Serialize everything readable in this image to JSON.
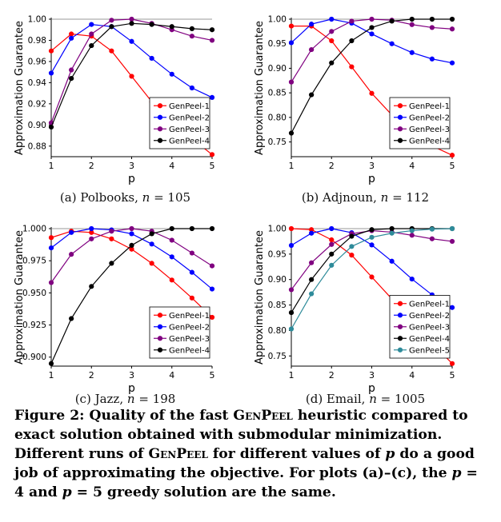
{
  "chart_data": [
    {
      "type": "line",
      "caption": {
        "label": "(a) Polbooks, ",
        "n_part": "n",
        "eq": " = 105"
      },
      "xlabel": "p",
      "ylabel": "Approximation Guarantee",
      "xlim": [
        1,
        5
      ],
      "ylim": [
        0.87,
        1.0
      ],
      "xticks": [
        "1",
        "2",
        "3",
        "4",
        "5"
      ],
      "yticks": [
        0.88,
        0.9,
        0.92,
        0.94,
        0.96,
        0.98,
        1.0
      ],
      "ytick_labels": [
        "0.88",
        "0.90",
        "0.92",
        "0.94",
        "0.96",
        "0.98",
        "1.00"
      ],
      "legend_position": "right",
      "reference_line": 1.0,
      "x": [
        1,
        1.5,
        2,
        2.5,
        3,
        3.5,
        4,
        4.5,
        5
      ],
      "series": [
        {
          "name": "GenPeel-1",
          "color": "#ff0000",
          "values": [
            0.97,
            0.986,
            0.984,
            0.97,
            0.946,
            0.922,
            0.905,
            0.887,
            0.872
          ]
        },
        {
          "name": "GenPeel-2",
          "color": "#0000ff",
          "values": [
            0.949,
            0.982,
            0.995,
            0.993,
            0.979,
            0.963,
            0.948,
            0.935,
            0.926
          ]
        },
        {
          "name": "GenPeel-3",
          "color": "#800080",
          "values": [
            0.902,
            0.952,
            0.986,
            0.999,
            1.0,
            0.996,
            0.99,
            0.984,
            0.98
          ]
        },
        {
          "name": "GenPeel-4",
          "color": "#000000",
          "values": [
            0.898,
            0.944,
            0.975,
            0.993,
            0.996,
            0.995,
            0.993,
            0.991,
            0.99
          ]
        }
      ]
    },
    {
      "type": "line",
      "caption": {
        "label": "(b) Adjnoun, ",
        "n_part": "n",
        "eq": " = 112"
      },
      "xlabel": "p",
      "ylabel": "Approximation Guarantee",
      "xlim": [
        1,
        5
      ],
      "ylim": [
        0.72,
        1.0
      ],
      "xticks": [
        "1",
        "2",
        "3",
        "4",
        "5"
      ],
      "yticks": [
        0.75,
        0.8,
        0.85,
        0.9,
        0.95,
        1.0
      ],
      "ytick_labels": [
        "0.75",
        "0.80",
        "0.85",
        "0.90",
        "0.95",
        "1.00"
      ],
      "legend_position": "right",
      "reference_line": 1.0,
      "x": [
        1,
        1.5,
        2,
        2.5,
        3,
        3.5,
        4,
        4.5,
        5
      ],
      "series": [
        {
          "name": "GenPeel-1",
          "color": "#ff0000",
          "values": [
            0.986,
            0.986,
            0.956,
            0.903,
            0.849,
            0.805,
            0.772,
            0.742,
            0.723
          ]
        },
        {
          "name": "GenPeel-2",
          "color": "#0000ff",
          "values": [
            0.952,
            0.99,
            1.0,
            0.992,
            0.97,
            0.95,
            0.932,
            0.919,
            0.911
          ]
        },
        {
          "name": "GenPeel-3",
          "color": "#800080",
          "values": [
            0.872,
            0.938,
            0.975,
            0.996,
            1.0,
            0.998,
            0.989,
            0.983,
            0.98
          ]
        },
        {
          "name": "GenPeel-4",
          "color": "#000000",
          "values": [
            0.768,
            0.846,
            0.911,
            0.956,
            0.983,
            0.996,
            1.0,
            1.0,
            1.0
          ]
        }
      ]
    },
    {
      "type": "line",
      "caption": {
        "label": "(c) Jazz, ",
        "n_part": "n",
        "eq": " = 198"
      },
      "xlabel": "p",
      "ylabel": "Approximation Guarantee",
      "xlim": [
        1,
        5
      ],
      "ylim": [
        0.893,
        1.0
      ],
      "xticks": [
        "1",
        "2",
        "3",
        "4",
        "5"
      ],
      "yticks": [
        0.9,
        0.925,
        0.95,
        0.975,
        1.0
      ],
      "ytick_labels": [
        "0.900",
        "0.925",
        "0.950",
        "0.975",
        "1.000"
      ],
      "legend_position": "right",
      "reference_line": 1.0,
      "x": [
        1,
        1.5,
        2,
        2.5,
        3,
        3.5,
        4,
        4.5,
        5
      ],
      "series": [
        {
          "name": "GenPeel-1",
          "color": "#ff0000",
          "values": [
            0.993,
            0.998,
            0.997,
            0.992,
            0.984,
            0.973,
            0.96,
            0.946,
            0.931
          ]
        },
        {
          "name": "GenPeel-2",
          "color": "#0000ff",
          "values": [
            0.985,
            0.997,
            1.0,
            0.999,
            0.996,
            0.988,
            0.978,
            0.966,
            0.953
          ]
        },
        {
          "name": "GenPeel-3",
          "color": "#800080",
          "values": [
            0.958,
            0.98,
            0.992,
            0.998,
            1.0,
            0.998,
            0.991,
            0.981,
            0.971
          ]
        },
        {
          "name": "GenPeel-4",
          "color": "#000000",
          "values": [
            0.895,
            0.93,
            0.955,
            0.973,
            0.987,
            0.996,
            1.0,
            1.0,
            1.0
          ]
        }
      ]
    },
    {
      "type": "line",
      "caption": {
        "label": "(d) Email, ",
        "n_part": "n",
        "eq": " = 1005"
      },
      "xlabel": "p",
      "ylabel": "Approximation Guarantee",
      "xlim": [
        1,
        5
      ],
      "ylim": [
        0.73,
        1.0
      ],
      "xticks": [
        "1",
        "2",
        "3",
        "4",
        "5"
      ],
      "yticks": [
        0.75,
        0.8,
        0.85,
        0.9,
        0.95,
        1.0
      ],
      "ytick_labels": [
        "0.75",
        "0.80",
        "0.85",
        "0.90",
        "0.95",
        "1.00"
      ],
      "legend_position": "right",
      "reference_line": 1.0,
      "x": [
        1,
        1.5,
        2,
        2.5,
        3,
        3.5,
        4,
        4.5,
        5
      ],
      "series": [
        {
          "name": "GenPeel-1",
          "color": "#ff0000",
          "values": [
            1.0,
            0.998,
            0.978,
            0.948,
            0.905,
            0.862,
            0.818,
            0.775,
            0.735
          ]
        },
        {
          "name": "GenPeel-2",
          "color": "#0000ff",
          "values": [
            0.967,
            0.991,
            1.0,
            0.992,
            0.968,
            0.936,
            0.901,
            0.87,
            0.845
          ]
        },
        {
          "name": "GenPeel-3",
          "color": "#800080",
          "values": [
            0.88,
            0.933,
            0.969,
            0.99,
            0.996,
            0.993,
            0.987,
            0.98,
            0.975
          ]
        },
        {
          "name": "GenPeel-4",
          "color": "#000000",
          "values": [
            0.835,
            0.9,
            0.95,
            0.985,
            0.998,
            1.0,
            1.0,
            1.0,
            1.0
          ]
        },
        {
          "name": "GenPeel-5",
          "color": "#2e8b9a",
          "values": [
            0.803,
            0.872,
            0.928,
            0.965,
            0.983,
            0.991,
            0.996,
            0.999,
            1.0
          ]
        }
      ]
    }
  ],
  "figure_caption": {
    "parts": [
      {
        "t": "Figure 2: Quality of the fast ",
        "s": ""
      },
      {
        "t": "GenPeel",
        "s": "sc"
      },
      {
        "t": " heuristic compared to exact solution obtained with submodular minimization. Different runs of ",
        "s": ""
      },
      {
        "t": "GenPeel",
        "s": "sc"
      },
      {
        "t": " for different values of ",
        "s": ""
      },
      {
        "t": "p",
        "s": "it"
      },
      {
        "t": " do a good job of approximating the objective. For plots (a)–(c), the ",
        "s": ""
      },
      {
        "t": "p",
        "s": "it"
      },
      {
        "t": " = 4 and ",
        "s": ""
      },
      {
        "t": "p",
        "s": "it"
      },
      {
        "t": " = 5 greedy solution are the same.",
        "s": ""
      }
    ]
  }
}
